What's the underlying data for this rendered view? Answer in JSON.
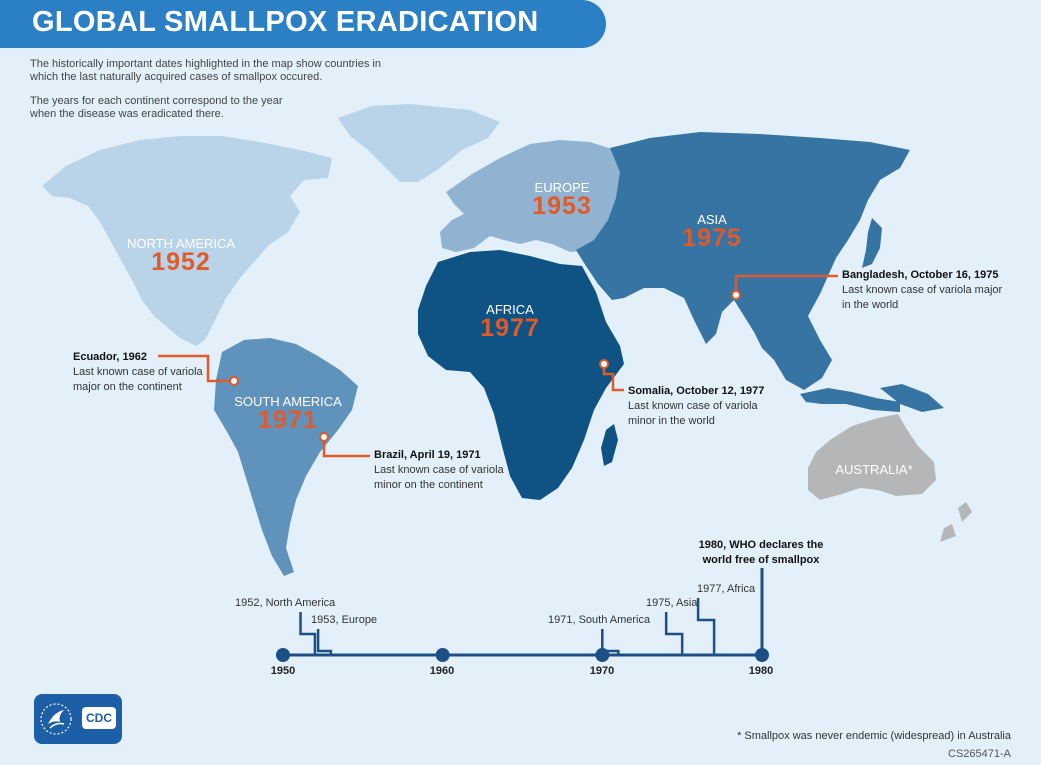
{
  "title": "GLOBAL SMALLPOX ERADICATION",
  "intro": {
    "line1": "The historically important dates highlighted in the map show countries in which the last naturally acquired cases of smallpox occured.",
    "line2": "The years for each continent correspond to the year when the disease was eradicated there."
  },
  "colors": {
    "background": "#e3f0f9",
    "title_bar": "#2b7fc4",
    "north_america": "#b9d3e8",
    "europe": "#8fb3d1",
    "south_america": "#5f93bc",
    "asia": "#3674a4",
    "africa": "#0f5284",
    "australia": "#b4b6b8",
    "accent": "#e05a2a",
    "timeline": "#1c4f86"
  },
  "continents": [
    {
      "name": "NORTH AMERICA",
      "year": "1952"
    },
    {
      "name": "EUROPE",
      "year": "1953"
    },
    {
      "name": "ASIA",
      "year": "1975"
    },
    {
      "name": "AFRICA",
      "year": "1977"
    },
    {
      "name": "SOUTH AMERICA",
      "year": "1971"
    },
    {
      "name": "AUSTRALIA*",
      "year": ""
    }
  ],
  "callouts": [
    {
      "head": "Ecuador, 1962",
      "line1": "Last known case of variola",
      "line2": "major on the continent"
    },
    {
      "head": "Brazil, April 19, 1971",
      "line1": "Last known case of variola",
      "line2": "minor on the continent"
    },
    {
      "head": "Somalia, October 12, 1977",
      "line1": "Last known case of variola",
      "line2": "minor in the world"
    },
    {
      "head": "Bangladesh, October 16, 1975",
      "line1": "Last known case of variola major",
      "line2": "in the world"
    }
  ],
  "timeline": {
    "decades": [
      "1950",
      "1960",
      "1970",
      "1980"
    ],
    "events": [
      {
        "label": "1952, North America",
        "year": 1952
      },
      {
        "label": "1953, Europe",
        "year": 1953
      },
      {
        "label": "1971, South America",
        "year": 1971
      },
      {
        "label": "1975, Asia",
        "year": 1975
      },
      {
        "label": "1977, Africa",
        "year": 1977
      }
    ],
    "final": {
      "line1": "1980, WHO declares the",
      "line2": "world free of smallpox",
      "year": 1980
    }
  },
  "logo": {
    "text": "CDC"
  },
  "footnote": "* Smallpox was never endemic (widespread) in Australia",
  "code": "CS265471-A"
}
